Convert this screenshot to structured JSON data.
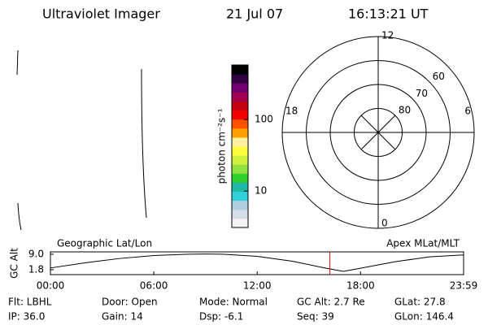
{
  "header": {
    "title": "Ultraviolet Imager",
    "date": "21 Jul 07",
    "time": "16:13:21 UT"
  },
  "colorbar": {
    "label": "photon cm⁻²s⁻¹",
    "log": true,
    "clim": [
      3.1,
      580
    ],
    "cticks": [
      10,
      100
    ],
    "colormap": [
      "#f4f4f4",
      "#d8dce8",
      "#b0d0e0",
      "#30d0d8",
      "#20b8a8",
      "#30d030",
      "#90e040",
      "#d0f040",
      "#ffff40",
      "#fff0a0",
      "#ffa000",
      "#ff5000",
      "#f00000",
      "#c00010",
      "#a00050",
      "#700070",
      "#300040",
      "#000000"
    ]
  },
  "polar": {
    "rlim": [
      90,
      50
    ],
    "rticks": [
      80,
      70,
      60
    ],
    "hours": [
      "12",
      "18",
      "6",
      "0"
    ]
  },
  "chart_data": {
    "type": "line",
    "title": "Geographic Lat/Lon",
    "subtitle": "Apex MLat/MLT",
    "ylabel": "GC Alt",
    "x": [
      0,
      2,
      4,
      6,
      8,
      9,
      10,
      12,
      14,
      16,
      17,
      18,
      20,
      22,
      23.98
    ],
    "series": [
      {
        "name": "GC Alt",
        "color": "#000000",
        "values": [
          2.6,
          5.0,
          7.0,
          8.4,
          9.0,
          9.1,
          9.0,
          8.0,
          5.8,
          2.5,
          1.0,
          2.5,
          5.5,
          7.8,
          8.7
        ]
      }
    ],
    "marker": {
      "x": 16.22,
      "color": "#ff0000"
    },
    "xlim": [
      0,
      23.98
    ],
    "xticks": [
      {
        "value": 0,
        "label": "00:00"
      },
      {
        "value": 6,
        "label": "06:00"
      },
      {
        "value": 12,
        "label": "12:00"
      },
      {
        "value": 18,
        "label": "18:00"
      },
      {
        "value": 23.98,
        "label": "23:59"
      }
    ],
    "ylim": [
      -0.5,
      10.1
    ],
    "yticks": [
      1.8,
      {
        "value": 9,
        "label": "9.0"
      }
    ]
  },
  "status": [
    [
      "Flt: LBHL",
      "Door: Open",
      "Mode: Normal",
      "GC Alt: 2.7 Re",
      "GLat:  27.8"
    ],
    [
      "IP: 36.0",
      "Gain: 14",
      "Dsp:   -6.1",
      "Seq: 39",
      "GLon: 146.4"
    ]
  ]
}
